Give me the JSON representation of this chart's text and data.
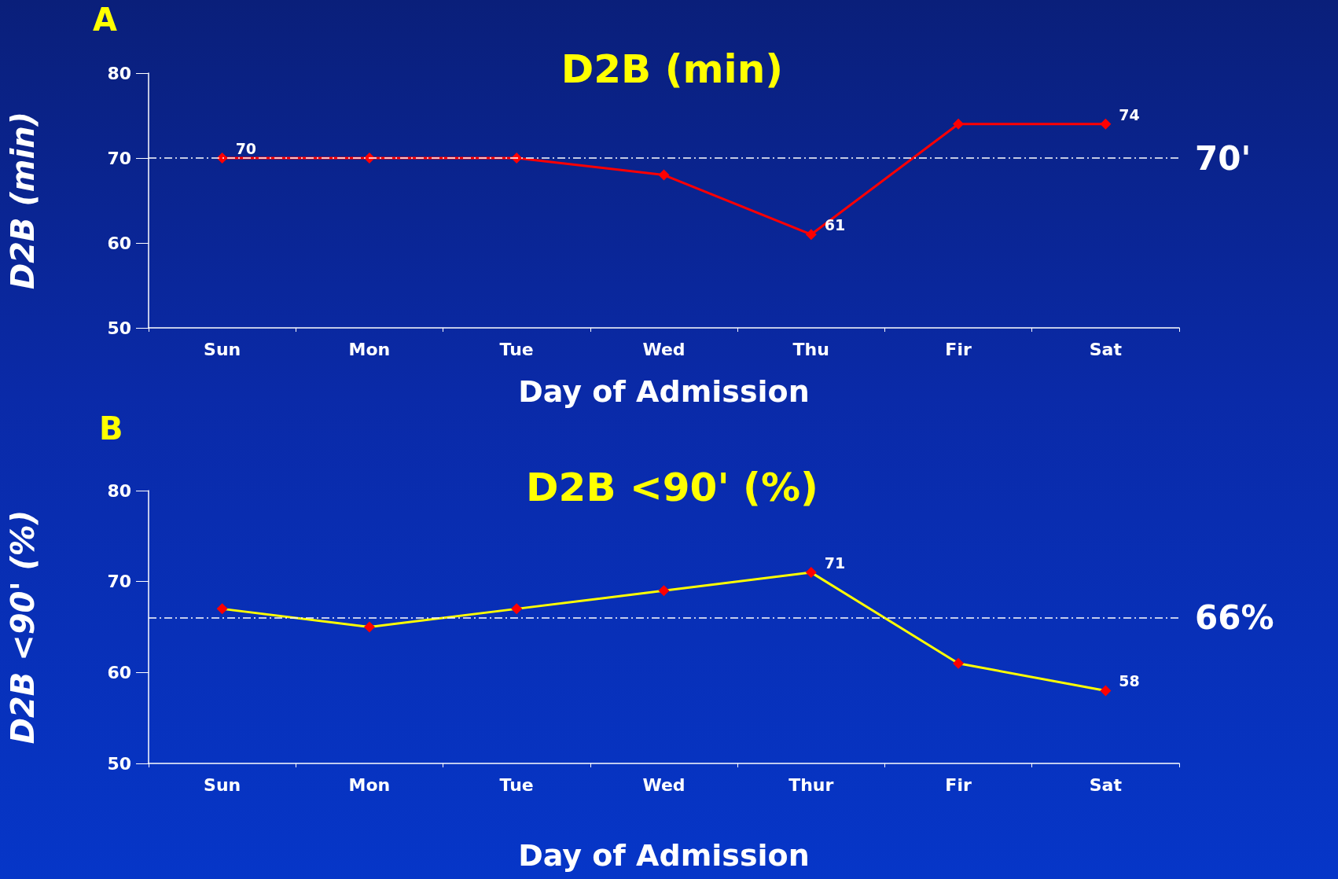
{
  "chart_data": [
    {
      "type": "line",
      "title": "D2B (min)",
      "xlabel": "Day of Admission",
      "ylabel": "D2B (min)",
      "annotations": [
        "A"
      ],
      "categories": [
        "Sun",
        "Mon",
        "Tue",
        "Wed",
        "Thu",
        "Fir",
        "Sat"
      ],
      "marker": "diamond",
      "line_style": "solid",
      "series": [
        {
          "color": "#ff0000",
          "colors": [
            "#ff0000",
            "#ff0000",
            "#ff0000",
            "#ff0000",
            "#ff0000",
            "#ff0000",
            "#ff0000"
          ],
          "values": [
            70,
            70,
            70,
            68,
            61,
            74,
            74
          ],
          "value_labels": [
            "70",
            null,
            null,
            null,
            "61",
            null,
            "74"
          ]
        }
      ],
      "ylim": [
        50,
        80
      ],
      "yticks": [
        50,
        60,
        70,
        80
      ],
      "ref_lines": [
        {
          "axis": "y",
          "value": 70,
          "label": "70'",
          "color": "#ffffff",
          "line_style": "dashed"
        }
      ]
    },
    {
      "type": "line",
      "title": "D2B <90' (%)",
      "xlabel": "Day of Admission",
      "ylabel": "D2B <90' (%)",
      "annotations": [
        "B"
      ],
      "categories": [
        "Sun",
        "Mon",
        "Tue",
        "Wed",
        "Thur",
        "Fir",
        "Sat"
      ],
      "marker": "diamond",
      "line_style": "solid",
      "series": [
        {
          "color": "#ffff00",
          "colors": [
            "#ff0000",
            "#ff0000",
            "#ff0000",
            "#ff0000",
            "#ff0000",
            "#ff0000",
            "#ff0000"
          ],
          "values": [
            67,
            65,
            67,
            69,
            71,
            61,
            58
          ],
          "value_labels": [
            null,
            null,
            null,
            null,
            "71",
            null,
            "58"
          ]
        }
      ],
      "ylim": [
        50,
        80
      ],
      "yticks": [
        50,
        60,
        70,
        80
      ],
      "ref_lines": [
        {
          "axis": "y",
          "value": 66,
          "label": "66%",
          "color": "#ffffff",
          "line_style": "dashed"
        }
      ]
    }
  ]
}
